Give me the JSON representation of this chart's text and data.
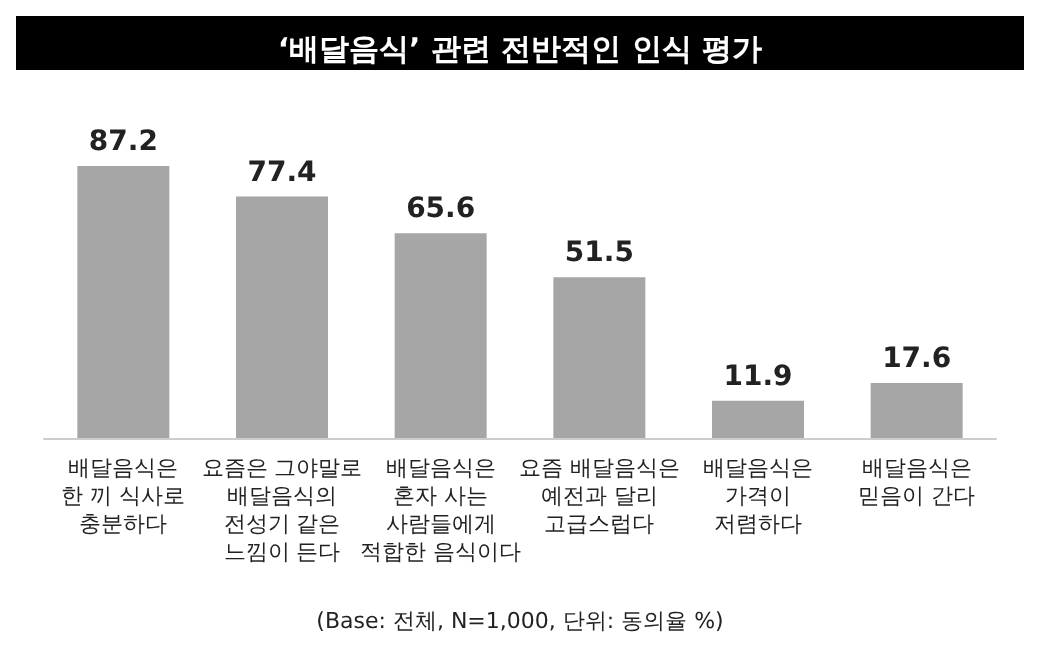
{
  "chart_data": {
    "type": "bar",
    "title": "‘배달음식’ 관련 전반적인 인식 평가",
    "categories": [
      "배달음식은\n한 끼 식사로\n충분하다",
      "요즘은 그야말로\n배달음식의\n전성기 같은\n느낌이 든다",
      "배달음식은\n혼자 사는\n사람들에게\n적합한 음식이다",
      "요즘 배달음식은\n예전과 달리\n고급스럽다",
      "배달음식은\n가격이\n저렴하다",
      "배달음식은\n믿음이 간다"
    ],
    "values": [
      87.2,
      77.4,
      65.6,
      51.5,
      11.9,
      17.6
    ],
    "color": "#a6a6a6",
    "data_labels": true,
    "annotations": [
      "(Base: 전체, N=1,000, 단위: 동의율 %)"
    ]
  }
}
